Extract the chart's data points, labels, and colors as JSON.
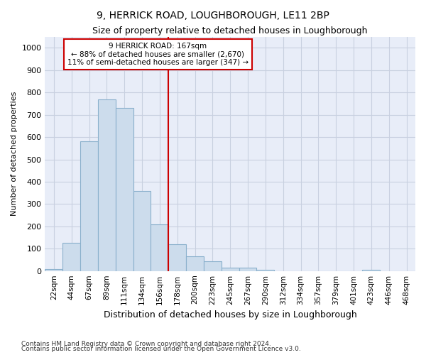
{
  "title": "9, HERRICK ROAD, LOUGHBOROUGH, LE11 2BP",
  "subtitle": "Size of property relative to detached houses in Loughborough",
  "xlabel": "Distribution of detached houses by size in Loughborough",
  "ylabel": "Number of detached properties",
  "categories": [
    "22sqm",
    "44sqm",
    "67sqm",
    "89sqm",
    "111sqm",
    "134sqm",
    "156sqm",
    "178sqm",
    "200sqm",
    "223sqm",
    "245sqm",
    "267sqm",
    "290sqm",
    "312sqm",
    "334sqm",
    "357sqm",
    "379sqm",
    "401sqm",
    "423sqm",
    "446sqm",
    "468sqm"
  ],
  "values": [
    10,
    125,
    580,
    770,
    730,
    360,
    210,
    120,
    65,
    42,
    15,
    15,
    5,
    0,
    0,
    0,
    0,
    0,
    5,
    0,
    0
  ],
  "bar_color": "#ccdcec",
  "bar_edge_color": "#8ab0cc",
  "property_label": "9 HERRICK ROAD: 167sqm",
  "annotation_line1": "← 88% of detached houses are smaller (2,670)",
  "annotation_line2": "11% of semi-detached houses are larger (347) →",
  "vline_color": "#cc0000",
  "vline_position": 6.5,
  "annotation_box_color": "#cc0000",
  "ylim": [
    0,
    1050
  ],
  "yticks": [
    0,
    100,
    200,
    300,
    400,
    500,
    600,
    700,
    800,
    900,
    1000
  ],
  "footnote1": "Contains HM Land Registry data © Crown copyright and database right 2024.",
  "footnote2": "Contains public sector information licensed under the Open Government Licence v3.0.",
  "grid_color": "#c8d0e0",
  "background_color": "#ffffff",
  "plot_bg_color": "#e8edf8"
}
